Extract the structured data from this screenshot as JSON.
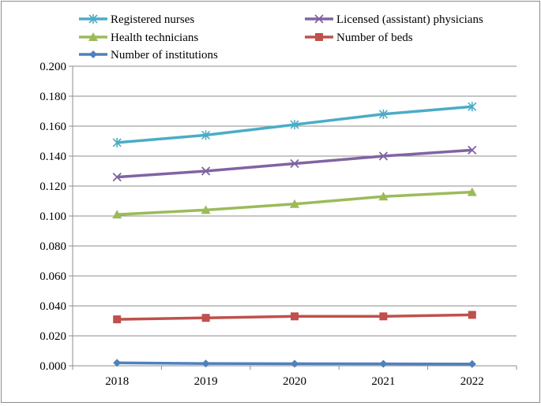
{
  "chart_data": {
    "type": "line",
    "title": "",
    "xlabel": "",
    "ylabel": "",
    "categories": [
      "2018",
      "2019",
      "2020",
      "2021",
      "2022"
    ],
    "ylim": [
      0,
      0.2
    ],
    "ytick_step": 0.02,
    "ytick_labels": [
      "0.000",
      "0.020",
      "0.040",
      "0.060",
      "0.080",
      "0.100",
      "0.120",
      "0.140",
      "0.160",
      "0.180",
      "0.200"
    ],
    "grid": true,
    "legend_position": "top",
    "series": [
      {
        "name": "Registered nurses",
        "color": "#4BACC6",
        "marker": "asterisk",
        "values": [
          0.149,
          0.154,
          0.161,
          0.168,
          0.173
        ]
      },
      {
        "name": "Licensed (assistant) physicians",
        "color": "#8064A2",
        "marker": "x",
        "values": [
          0.126,
          0.13,
          0.135,
          0.14,
          0.144
        ]
      },
      {
        "name": "Health technicians",
        "color": "#9BBB59",
        "marker": "triangle",
        "values": [
          0.101,
          0.104,
          0.108,
          0.113,
          0.116
        ]
      },
      {
        "name": "Number of beds",
        "color": "#C0504D",
        "marker": "square",
        "values": [
          0.031,
          0.032,
          0.033,
          0.033,
          0.034
        ]
      },
      {
        "name": "Number of institutions",
        "color": "#4F81BD",
        "marker": "diamond",
        "values": [
          0.002,
          0.0015,
          0.0014,
          0.0013,
          0.0012
        ]
      }
    ]
  }
}
